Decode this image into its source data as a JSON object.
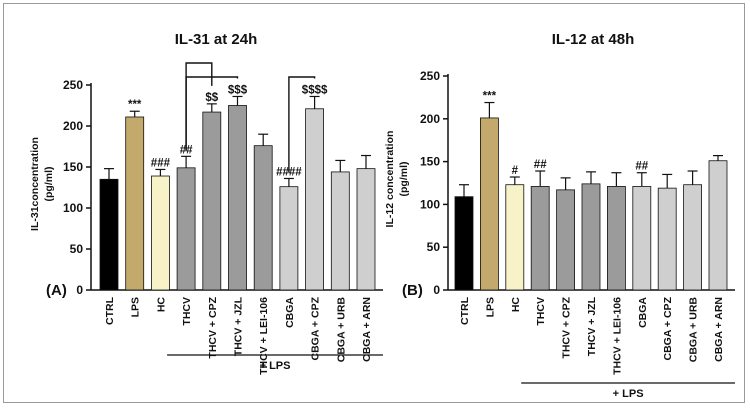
{
  "chart_data": [
    {
      "type": "bar",
      "title": "IL-31 at 24h",
      "panel_label": "(A)",
      "ylabel_line1": "IL-31concentration",
      "ylabel_line2": "(pg/ml)",
      "ylim": [
        0,
        250
      ],
      "yticks": [
        0,
        50,
        100,
        150,
        200,
        250
      ],
      "categories": [
        "CTRL",
        "LPS",
        "HC",
        "THCV",
        "THCV + CPZ",
        "THCV + JZL",
        "THCV + LEI-106",
        "CBGA",
        "CBGA + CPZ",
        "CBGA + URB",
        "CBGA + ARN"
      ],
      "values": [
        135,
        211,
        139,
        149,
        217,
        225,
        176,
        126,
        221,
        144,
        148
      ],
      "errors": [
        13,
        7,
        8,
        14,
        10,
        11,
        14,
        10,
        15,
        14,
        16
      ],
      "colors": [
        "#000000",
        "#c3a96c",
        "#f7f2c8",
        "#9b9b9b",
        "#9b9b9b",
        "#9b9b9b",
        "#9b9b9b",
        "#cfcfcf",
        "#cfcfcf",
        "#cfcfcf",
        "#cfcfcf"
      ],
      "annotations": [
        "",
        "***",
        "###",
        "##",
        "$$",
        "$$$",
        "",
        "####",
        "$$$$",
        "",
        ""
      ],
      "brackets": [
        {
          "from": 3,
          "to": 4
        },
        {
          "from": 3,
          "to": 5
        },
        {
          "from": 7,
          "to": 8
        }
      ],
      "group_label": "+ LPS",
      "group_range": [
        3,
        10
      ],
      "grid": false,
      "legend": "none"
    },
    {
      "type": "bar",
      "title": "IL-12 at 48h",
      "panel_label": "(B)",
      "ylabel_line1": "IL-12 concentration",
      "ylabel_line2": "(pg/ml)",
      "ylim": [
        0,
        250
      ],
      "yticks": [
        0,
        50,
        100,
        150,
        200,
        250
      ],
      "categories": [
        "CTRL",
        "LPS",
        "HC",
        "THCV",
        "THCV + CPZ",
        "THCV + JZL",
        "THCV + LEI-106",
        "CBGA",
        "CBGA + CPZ",
        "CBGA + URB",
        "CBGA + ARN"
      ],
      "values": [
        109,
        201,
        123,
        121,
        117,
        124,
        121,
        121,
        119,
        123,
        151
      ],
      "errors": [
        14,
        18,
        9,
        18,
        14,
        14,
        16,
        16,
        16,
        16,
        6
      ],
      "colors": [
        "#000000",
        "#c3a96c",
        "#f7f2c8",
        "#9b9b9b",
        "#9b9b9b",
        "#9b9b9b",
        "#9b9b9b",
        "#cfcfcf",
        "#cfcfcf",
        "#cfcfcf",
        "#cfcfcf"
      ],
      "annotations": [
        "",
        "***",
        "#",
        "##",
        "",
        "",
        "",
        "##",
        "",
        "",
        ""
      ],
      "brackets": [],
      "group_label": "+ LPS",
      "group_range": [
        3,
        10
      ],
      "grid": false,
      "legend": "none"
    }
  ]
}
